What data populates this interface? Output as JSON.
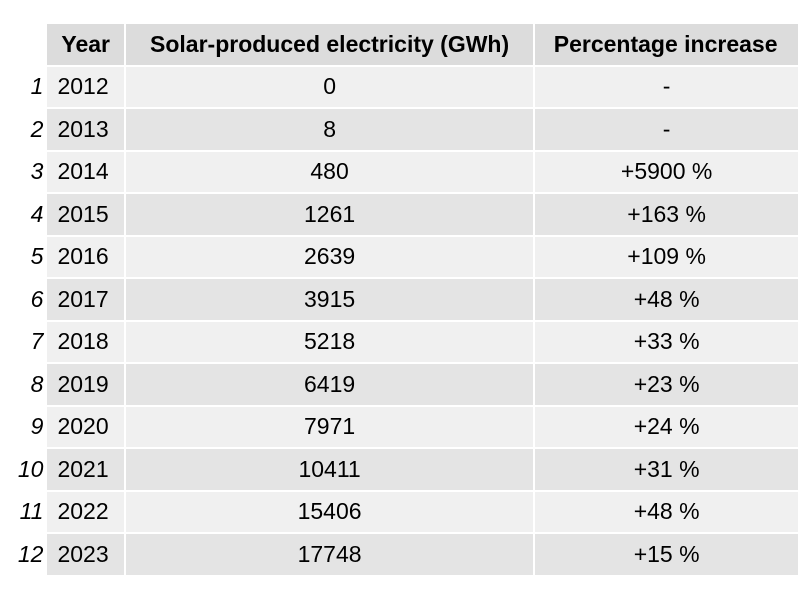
{
  "table": {
    "headers": {
      "year": "Year",
      "solar": "Solar-produced electricity (GWh)",
      "pct": "Percentage increase"
    },
    "rows": [
      {
        "num": "1",
        "year": "2012",
        "solar": "0",
        "pct": "-"
      },
      {
        "num": "2",
        "year": "2013",
        "solar": "8",
        "pct": "-"
      },
      {
        "num": "3",
        "year": "2014",
        "solar": "480",
        "pct": "+5900 %"
      },
      {
        "num": "4",
        "year": "2015",
        "solar": "1261",
        "pct": "+163 %"
      },
      {
        "num": "5",
        "year": "2016",
        "solar": "2639",
        "pct": "+109 %"
      },
      {
        "num": "6",
        "year": "2017",
        "solar": "3915",
        "pct": "+48 %"
      },
      {
        "num": "7",
        "year": "2018",
        "solar": "5218",
        "pct": "+33 %"
      },
      {
        "num": "8",
        "year": "2019",
        "solar": "6419",
        "pct": "+23 %"
      },
      {
        "num": "9",
        "year": "2020",
        "solar": "7971",
        "pct": "+24 %"
      },
      {
        "num": "10",
        "year": "2021",
        "solar": "10411",
        "pct": "+31 %"
      },
      {
        "num": "11",
        "year": "2022",
        "solar": "15406",
        "pct": "+48 %"
      },
      {
        "num": "12",
        "year": "2023",
        "solar": "17748",
        "pct": "+15 %"
      }
    ]
  },
  "colors": {
    "header_bg": "#dcdcdc",
    "row_light": "#f0f0f0",
    "row_dark": "#e4e4e4"
  }
}
